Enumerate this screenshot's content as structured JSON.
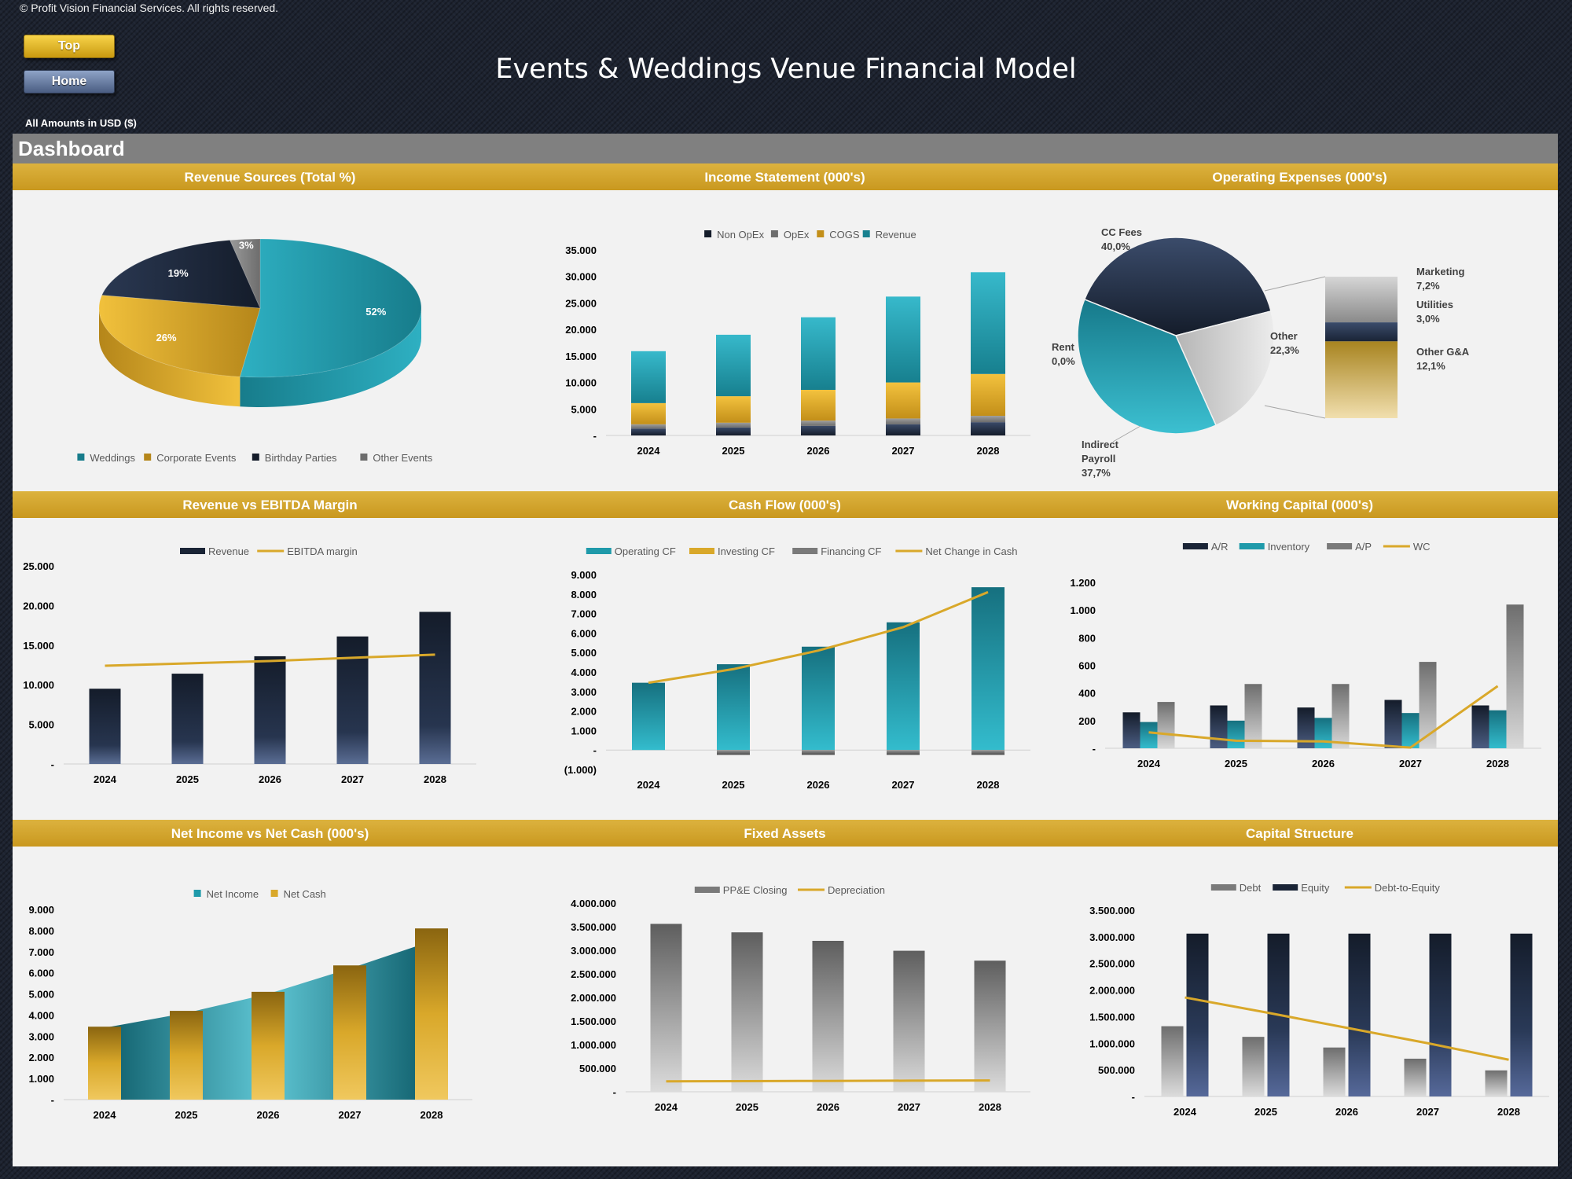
{
  "header": {
    "copyright": "© Profit Vision Financial Services. All rights reserved.",
    "top_label": "Top",
    "home_label": "Home",
    "title": "Events & Weddings Venue Financial Model",
    "amounts_note": "All Amounts in  USD ($)",
    "dashboard_label": "Dashboard"
  },
  "colors": {
    "teal": "#1f9aaa",
    "navy": "#1a2436",
    "gold": "#d9a82a",
    "grey": "#8c8c8c",
    "gold_bar": "#cfa12a",
    "panel": "#f2f2f2"
  },
  "chart_data": [
    {
      "id": "revenue_sources",
      "type": "pie",
      "title": "Revenue Sources (Total %)",
      "categories": [
        "Weddings",
        "Corporate Events",
        "Birthday Parties",
        "Other Events"
      ],
      "values": [
        52,
        26,
        19,
        3
      ],
      "labels": [
        "52%",
        "26%",
        "19%",
        "3%"
      ],
      "legend": "bottom"
    },
    {
      "id": "income_statement",
      "type": "bar",
      "stacked": true,
      "title": "Income Statement (000's)",
      "categories": [
        "2024",
        "2025",
        "2026",
        "2027",
        "2028"
      ],
      "series": [
        {
          "name": "Non OpEx",
          "values": [
            1300,
            1500,
            1800,
            2100,
            2500
          ]
        },
        {
          "name": "OpEx",
          "values": [
            800,
            900,
            1000,
            1100,
            1200
          ]
        },
        {
          "name": "COGS",
          "values": [
            4000,
            5000,
            5800,
            6800,
            7900
          ]
        },
        {
          "name": "Revenue",
          "values": [
            9800,
            11600,
            13700,
            16200,
            19200
          ]
        }
      ],
      "yticks": [
        "35.000",
        "30.000",
        "25.000",
        "20.000",
        "15.000",
        "10.000",
        "5.000",
        "-"
      ],
      "ylim": [
        0,
        35000
      ],
      "legend": "top"
    },
    {
      "id": "operating_expenses",
      "type": "pie",
      "title": "Operating Expenses (000's)",
      "categories": [
        "CC Fees",
        "Rent",
        "Indirect Payroll",
        "Other",
        "Marketing",
        "Utilities",
        "Other G&A"
      ],
      "values": [
        40.0,
        0.0,
        37.7,
        22.3,
        7.2,
        3.0,
        12.1
      ],
      "labels": [
        "CC Fees\n40,0%",
        "Rent\n0,0%",
        "Indirect\nPayroll\n37,7%",
        "Other\n22,3%",
        "Marketing\n7,2%",
        "Utilities\n3,0%",
        "Other G&A\n12,1%"
      ],
      "note": "pie of pie: Other expands to Marketing, Utilities, Other G&A"
    },
    {
      "id": "revenue_vs_ebitda",
      "type": "bar",
      "title": "Revenue vs EBITDA Margin",
      "categories": [
        "2024",
        "2025",
        "2026",
        "2027",
        "2028"
      ],
      "series": [
        {
          "name": "Revenue",
          "values": [
            9500,
            11400,
            13600,
            16100,
            19200
          ]
        },
        {
          "name": "EBITDA margin",
          "type": "line",
          "values": [
            12400,
            12700,
            13000,
            13400,
            13800
          ]
        }
      ],
      "yticks": [
        "25.000",
        "20.000",
        "15.000",
        "10.000",
        "5.000",
        "-"
      ],
      "ylim": [
        0,
        25000
      ],
      "legend": "top"
    },
    {
      "id": "cash_flow",
      "type": "bar",
      "title": "Cash Flow (000's)",
      "categories": [
        "2024",
        "2025",
        "2026",
        "2027",
        "2028"
      ],
      "series": [
        {
          "name": "Operating CF",
          "values": [
            3450,
            4400,
            5300,
            6550,
            8350
          ]
        },
        {
          "name": "Investing CF",
          "values": [
            0,
            0,
            0,
            0,
            0
          ]
        },
        {
          "name": "Financing CF",
          "values": [
            0,
            -250,
            -250,
            -250,
            -250
          ]
        },
        {
          "name": "Net Change in Cash",
          "type": "line",
          "values": [
            3450,
            4150,
            5100,
            6300,
            8100
          ]
        }
      ],
      "yticks": [
        "9.000",
        "8.000",
        "7.000",
        "6.000",
        "5.000",
        "4.000",
        "3.000",
        "2.000",
        "1.000",
        "-",
        "(1.000)"
      ],
      "ylim": [
        -1000,
        9000
      ],
      "legend": "top"
    },
    {
      "id": "working_capital",
      "type": "bar",
      "title": "Working Capital (000's)",
      "categories": [
        "2024",
        "2025",
        "2026",
        "2027",
        "2028"
      ],
      "series": [
        {
          "name": "A/R",
          "values": [
            260,
            310,
            295,
            350,
            310
          ]
        },
        {
          "name": "Inventory",
          "values": [
            190,
            200,
            220,
            255,
            275
          ]
        },
        {
          "name": "A/P",
          "values": [
            335,
            465,
            465,
            625,
            1040
          ]
        },
        {
          "name": "WC",
          "type": "line",
          "values": [
            115,
            55,
            50,
            5,
            450
          ]
        }
      ],
      "yticks": [
        "1.200",
        "1.000",
        "800",
        "600",
        "400",
        "200",
        "-"
      ],
      "ylim": [
        0,
        1200
      ],
      "legend": "top"
    },
    {
      "id": "net_income_vs_cash",
      "type": "bar",
      "title": "Net Income vs Net Cash (000's)",
      "categories": [
        "2024",
        "2025",
        "2026",
        "2027",
        "2028"
      ],
      "series": [
        {
          "name": "Net Income",
          "type": "area",
          "values": [
            3400,
            4100,
            5000,
            6200,
            7500
          ]
        },
        {
          "name": "Net Cash",
          "values": [
            3450,
            4200,
            5100,
            6350,
            8100
          ]
        }
      ],
      "yticks": [
        "9.000",
        "8.000",
        "7.000",
        "6.000",
        "5.000",
        "4.000",
        "3.000",
        "2.000",
        "1.000",
        "-"
      ],
      "ylim": [
        0,
        9000
      ],
      "legend": "top"
    },
    {
      "id": "fixed_assets",
      "type": "bar",
      "title": "Fixed Assets",
      "categories": [
        "2024",
        "2025",
        "2026",
        "2027",
        "2028"
      ],
      "series": [
        {
          "name": "PP&E Closing",
          "values": [
            3560000,
            3380000,
            3200000,
            2990000,
            2780000
          ]
        },
        {
          "name": "Depreciation",
          "type": "line",
          "values": [
            220000,
            225000,
            230000,
            235000,
            240000
          ]
        }
      ],
      "yticks": [
        "4.000.000",
        "3.500.000",
        "3.000.000",
        "2.500.000",
        "2.000.000",
        "1.500.000",
        "1.000.000",
        "500.000",
        "-"
      ],
      "ylim": [
        0,
        4000000
      ],
      "legend": "top"
    },
    {
      "id": "capital_structure",
      "type": "bar",
      "title": "Capital Structure",
      "categories": [
        "2024",
        "2025",
        "2026",
        "2027",
        "2028"
      ],
      "series": [
        {
          "name": "Debt",
          "values": [
            1320000,
            1120000,
            920000,
            710000,
            490000
          ]
        },
        {
          "name": "Equity",
          "values": [
            3060000,
            3060000,
            3060000,
            3060000,
            3060000
          ]
        },
        {
          "name": "Debt-to-Equity",
          "type": "line",
          "values": [
            1860000,
            1580000,
            1290000,
            1000000,
            690000
          ]
        }
      ],
      "yticks": [
        "3.500.000",
        "3.000.000",
        "2.500.000",
        "2.000.000",
        "1.500.000",
        "1.000.000",
        "500.000",
        "-"
      ],
      "ylim": [
        0,
        3500000
      ],
      "legend": "top"
    }
  ]
}
